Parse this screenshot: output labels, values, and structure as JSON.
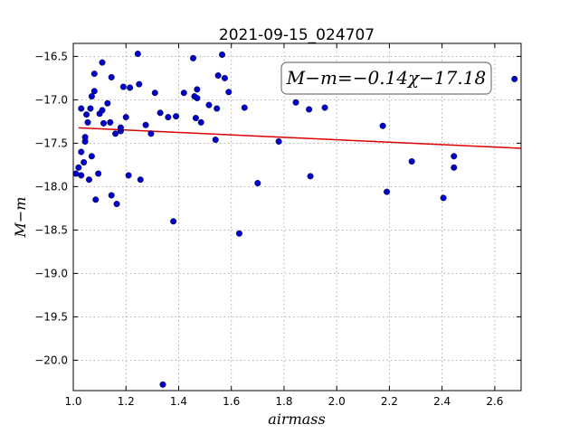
{
  "chart_data": {
    "type": "scatter",
    "title": "2021-09-15_024707",
    "xlabel": "airmass",
    "ylabel": "M−m",
    "xlim": [
      1.0,
      2.7
    ],
    "ylim": [
      -20.35,
      -16.35
    ],
    "xticks": [
      "1.0",
      "1.2",
      "1.4",
      "1.6",
      "1.8",
      "2.0",
      "2.2",
      "2.4",
      "2.6"
    ],
    "yticks": [
      "−16.5",
      "−17.0",
      "−17.5",
      "−18.0",
      "−18.5",
      "−19.0",
      "−19.5",
      "−20.0"
    ],
    "grid": true,
    "annotation": "M−m=−0.14χ−17.18",
    "annotation_position": "top-right",
    "marker_color": "#0000cc",
    "fit_color": "#dd0000",
    "fit": {
      "slope": -0.14,
      "intercept": -17.18
    },
    "points": [
      {
        "x": 1.01,
        "y": -17.85
      },
      {
        "x": 1.02,
        "y": -17.78
      },
      {
        "x": 1.03,
        "y": -17.87
      },
      {
        "x": 1.03,
        "y": -17.1
      },
      {
        "x": 1.03,
        "y": -17.6
      },
      {
        "x": 1.04,
        "y": -17.72
      },
      {
        "x": 1.045,
        "y": -17.48
      },
      {
        "x": 1.045,
        "y": -17.43
      },
      {
        "x": 1.05,
        "y": -17.17
      },
      {
        "x": 1.055,
        "y": -17.26
      },
      {
        "x": 1.06,
        "y": -17.92
      },
      {
        "x": 1.065,
        "y": -17.1
      },
      {
        "x": 1.07,
        "y": -17.65
      },
      {
        "x": 1.07,
        "y": -16.96
      },
      {
        "x": 1.08,
        "y": -16.7
      },
      {
        "x": 1.08,
        "y": -16.9
      },
      {
        "x": 1.085,
        "y": -18.15
      },
      {
        "x": 1.095,
        "y": -17.85
      },
      {
        "x": 1.1,
        "y": -17.16
      },
      {
        "x": 1.11,
        "y": -16.57
      },
      {
        "x": 1.11,
        "y": -17.12
      },
      {
        "x": 1.115,
        "y": -17.27
      },
      {
        "x": 1.13,
        "y": -17.04
      },
      {
        "x": 1.14,
        "y": -17.26
      },
      {
        "x": 1.145,
        "y": -16.74
      },
      {
        "x": 1.145,
        "y": -18.1
      },
      {
        "x": 1.16,
        "y": -17.39
      },
      {
        "x": 1.165,
        "y": -18.2
      },
      {
        "x": 1.18,
        "y": -17.36
      },
      {
        "x": 1.18,
        "y": -17.32
      },
      {
        "x": 1.19,
        "y": -16.85
      },
      {
        "x": 1.2,
        "y": -17.2
      },
      {
        "x": 1.21,
        "y": -17.87
      },
      {
        "x": 1.215,
        "y": -16.86
      },
      {
        "x": 1.245,
        "y": -16.47
      },
      {
        "x": 1.25,
        "y": -16.82
      },
      {
        "x": 1.255,
        "y": -17.92
      },
      {
        "x": 1.275,
        "y": -17.29
      },
      {
        "x": 1.295,
        "y": -17.39
      },
      {
        "x": 1.31,
        "y": -16.92
      },
      {
        "x": 1.33,
        "y": -17.15
      },
      {
        "x": 1.34,
        "y": -20.28
      },
      {
        "x": 1.36,
        "y": -17.2
      },
      {
        "x": 1.38,
        "y": -18.4
      },
      {
        "x": 1.39,
        "y": -17.19
      },
      {
        "x": 1.42,
        "y": -16.92
      },
      {
        "x": 1.455,
        "y": -16.52
      },
      {
        "x": 1.46,
        "y": -16.96
      },
      {
        "x": 1.465,
        "y": -17.21
      },
      {
        "x": 1.47,
        "y": -16.88
      },
      {
        "x": 1.47,
        "y": -16.98
      },
      {
        "x": 1.485,
        "y": -17.26
      },
      {
        "x": 1.515,
        "y": -17.06
      },
      {
        "x": 1.54,
        "y": -17.46
      },
      {
        "x": 1.545,
        "y": -17.1
      },
      {
        "x": 1.55,
        "y": -16.72
      },
      {
        "x": 1.565,
        "y": -16.48
      },
      {
        "x": 1.575,
        "y": -16.75
      },
      {
        "x": 1.59,
        "y": -16.91
      },
      {
        "x": 1.63,
        "y": -18.54
      },
      {
        "x": 1.65,
        "y": -17.09
      },
      {
        "x": 1.7,
        "y": -17.96
      },
      {
        "x": 1.78,
        "y": -17.48
      },
      {
        "x": 1.845,
        "y": -17.03
      },
      {
        "x": 1.895,
        "y": -17.11
      },
      {
        "x": 1.9,
        "y": -17.88
      },
      {
        "x": 1.955,
        "y": -17.09
      },
      {
        "x": 2.175,
        "y": -17.3
      },
      {
        "x": 2.19,
        "y": -18.06
      },
      {
        "x": 2.285,
        "y": -17.71
      },
      {
        "x": 2.405,
        "y": -18.13
      },
      {
        "x": 2.445,
        "y": -17.65
      },
      {
        "x": 2.445,
        "y": -17.78
      },
      {
        "x": 2.675,
        "y": -16.76
      }
    ]
  }
}
